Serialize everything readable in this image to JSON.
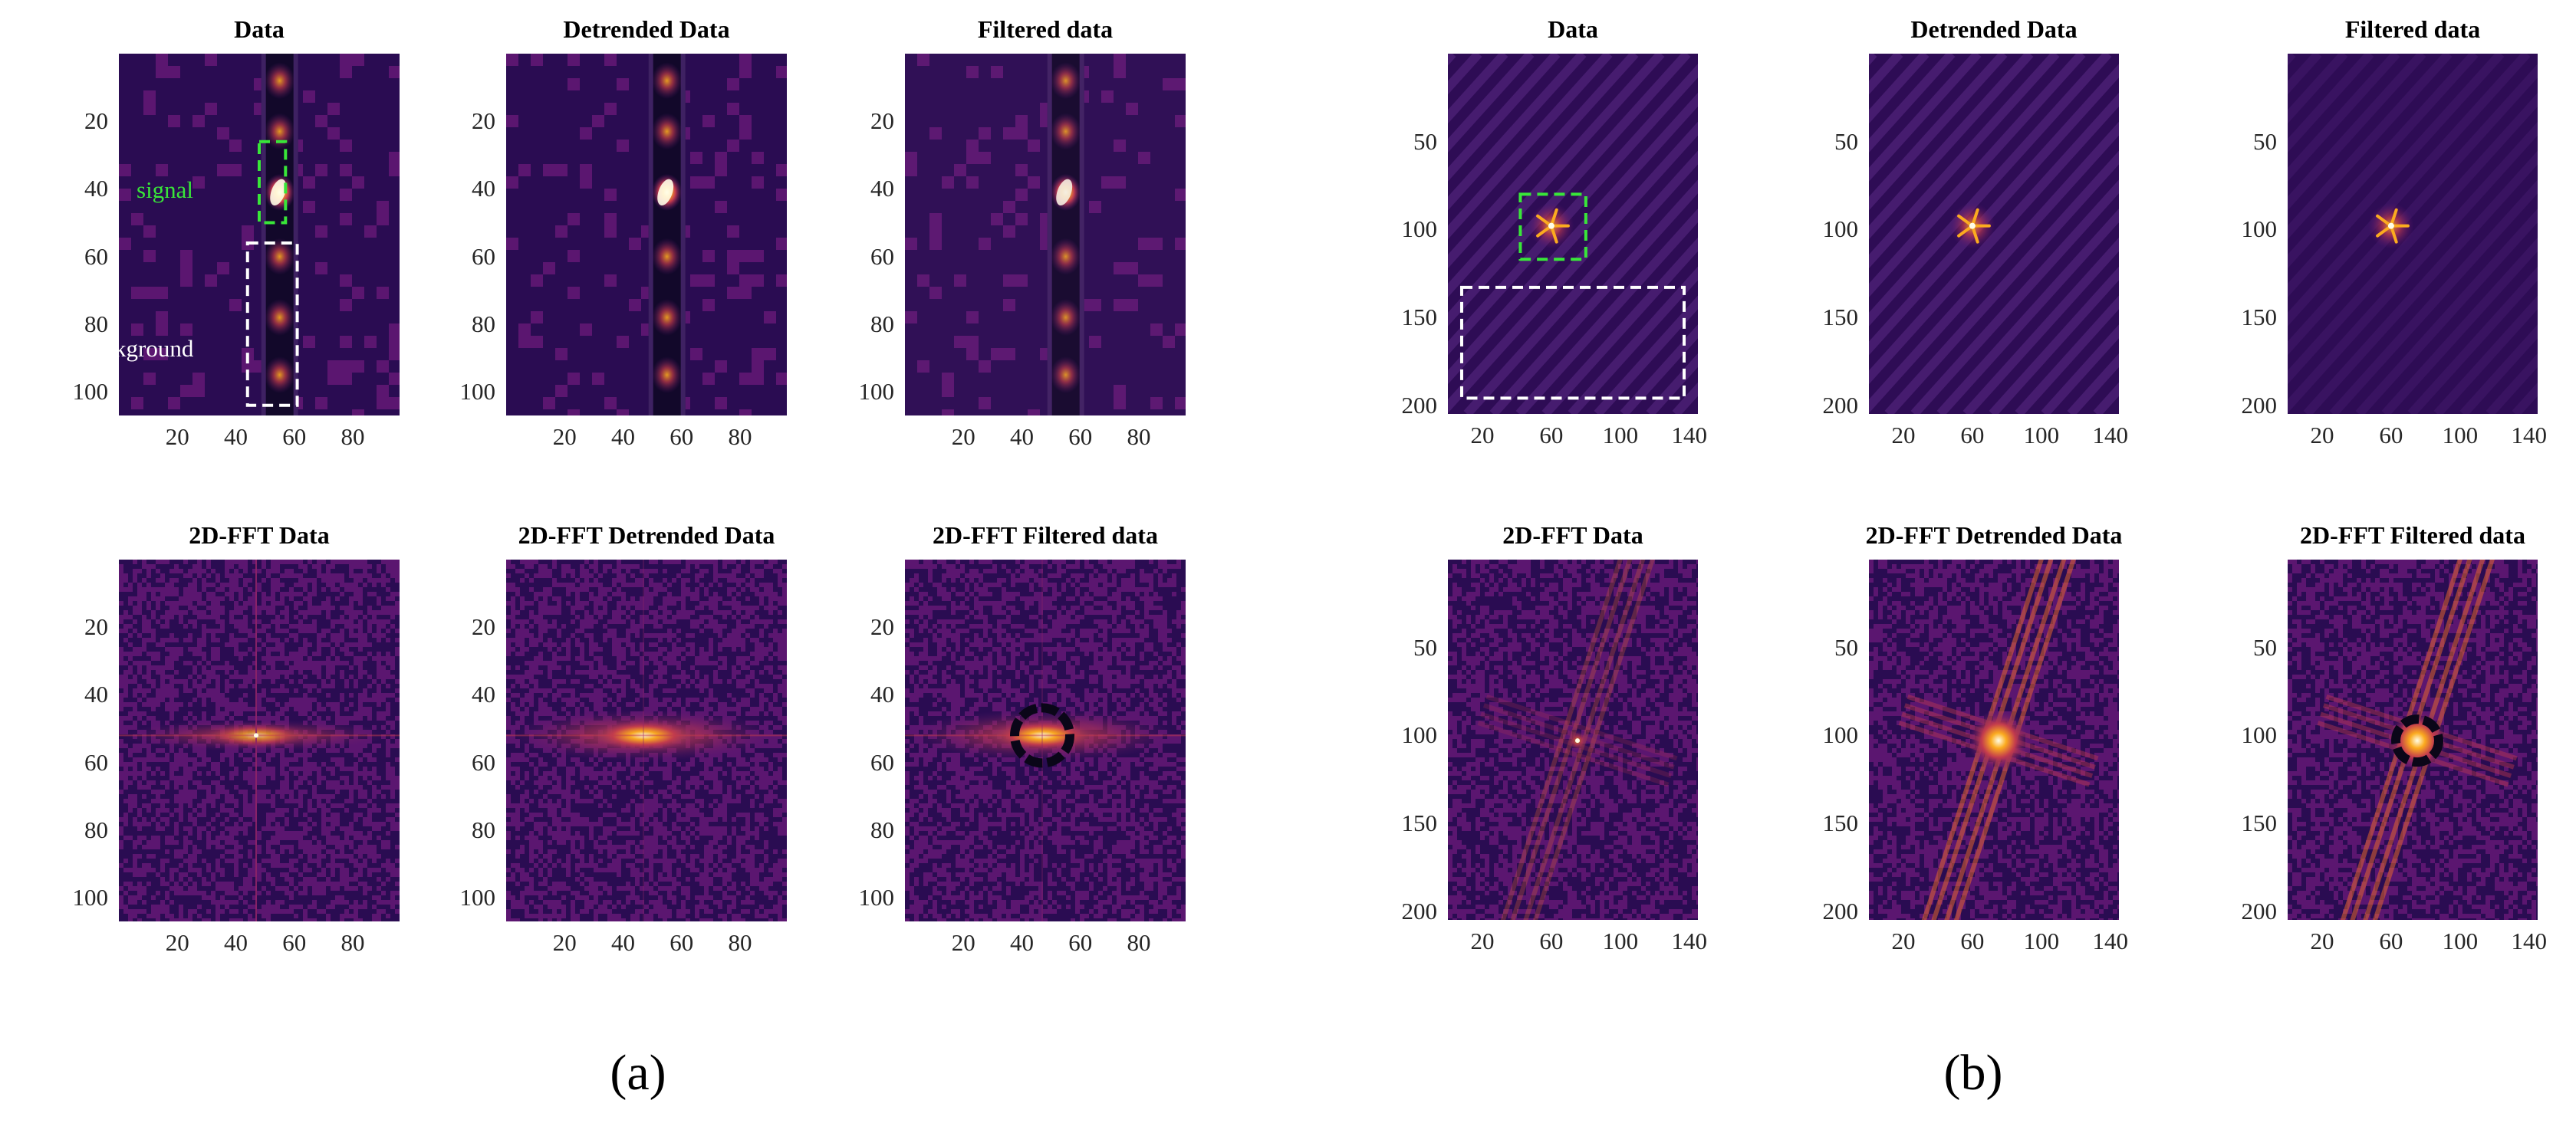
{
  "figure_labels": [
    "(a)",
    "(b)"
  ],
  "annotations": {
    "signal": {
      "text": "signal",
      "color": "#39e639"
    },
    "background": {
      "text": "background",
      "color": "#ffffff"
    }
  },
  "colormap": [
    "#0d0721",
    "#2a0c52",
    "#5b1670",
    "#8e2468",
    "#c33b4d",
    "#ec6a2a",
    "#fbab1f",
    "#fde36d",
    "#fffde8"
  ],
  "chart_data": [
    {
      "type": "heatmap",
      "group": "a",
      "title": "Data",
      "content": "image",
      "xticks": [
        20,
        40,
        60,
        80
      ],
      "yticks": [
        20,
        40,
        60,
        80,
        100
      ],
      "xlim": [
        0,
        96
      ],
      "ylim": [
        0,
        107
      ]
    },
    {
      "type": "heatmap",
      "group": "a",
      "title": "Detrended Data",
      "content": "image",
      "xticks": [
        20,
        40,
        60,
        80
      ],
      "yticks": [
        20,
        40,
        60,
        80,
        100
      ],
      "xlim": [
        0,
        96
      ],
      "ylim": [
        0,
        107
      ]
    },
    {
      "type": "heatmap",
      "group": "a",
      "title": "Filtered data",
      "content": "image",
      "xticks": [
        20,
        40,
        60,
        80
      ],
      "yticks": [
        20,
        40,
        60,
        80,
        100
      ],
      "xlim": [
        0,
        96
      ],
      "ylim": [
        0,
        107
      ]
    },
    {
      "type": "heatmap",
      "group": "a",
      "title": "2D-FFT Data",
      "content": "fft",
      "xticks": [
        20,
        40,
        60,
        80
      ],
      "yticks": [
        20,
        40,
        60,
        80,
        100
      ],
      "xlim": [
        0,
        96
      ],
      "ylim": [
        0,
        107
      ]
    },
    {
      "type": "heatmap",
      "group": "a",
      "title": "2D-FFT Detrended Data",
      "content": "fft",
      "xticks": [
        20,
        40,
        60,
        80
      ],
      "yticks": [
        20,
        40,
        60,
        80,
        100
      ],
      "xlim": [
        0,
        96
      ],
      "ylim": [
        0,
        107
      ]
    },
    {
      "type": "heatmap",
      "group": "a",
      "title": "2D-FFT Filtered data",
      "content": "fft",
      "xticks": [
        20,
        40,
        60,
        80
      ],
      "yticks": [
        20,
        40,
        60,
        80,
        100
      ],
      "xlim": [
        0,
        96
      ],
      "ylim": [
        0,
        107
      ]
    },
    {
      "type": "heatmap",
      "group": "b",
      "title": "Data",
      "content": "image",
      "xticks": [
        20,
        60,
        100,
        140
      ],
      "yticks": [
        50,
        100,
        150,
        200
      ],
      "xlim": [
        0,
        145
      ],
      "ylim": [
        0,
        205
      ]
    },
    {
      "type": "heatmap",
      "group": "b",
      "title": "Detrended Data",
      "content": "image",
      "xticks": [
        20,
        60,
        100,
        140
      ],
      "yticks": [
        50,
        100,
        150,
        200
      ],
      "xlim": [
        0,
        145
      ],
      "ylim": [
        0,
        205
      ]
    },
    {
      "type": "heatmap",
      "group": "b",
      "title": "Filtered data",
      "content": "image",
      "xticks": [
        20,
        60,
        100,
        140
      ],
      "yticks": [
        50,
        100,
        150,
        200
      ],
      "xlim": [
        0,
        145
      ],
      "ylim": [
        0,
        205
      ]
    },
    {
      "type": "heatmap",
      "group": "b",
      "title": "2D-FFT Data",
      "content": "fft",
      "xticks": [
        20,
        60,
        100,
        140
      ],
      "yticks": [
        50,
        100,
        150,
        200
      ],
      "xlim": [
        0,
        145
      ],
      "ylim": [
        0,
        205
      ]
    },
    {
      "type": "heatmap",
      "group": "b",
      "title": "2D-FFT Detrended Data",
      "content": "fft",
      "xticks": [
        20,
        60,
        100,
        140
      ],
      "yticks": [
        50,
        100,
        150,
        200
      ],
      "xlim": [
        0,
        145
      ],
      "ylim": [
        0,
        205
      ]
    },
    {
      "type": "heatmap",
      "group": "b",
      "title": "2D-FFT Filtered data",
      "content": "fft",
      "xticks": [
        20,
        60,
        100,
        140
      ],
      "yticks": [
        50,
        100,
        150,
        200
      ],
      "xlim": [
        0,
        145
      ],
      "ylim": [
        0,
        205
      ]
    }
  ]
}
